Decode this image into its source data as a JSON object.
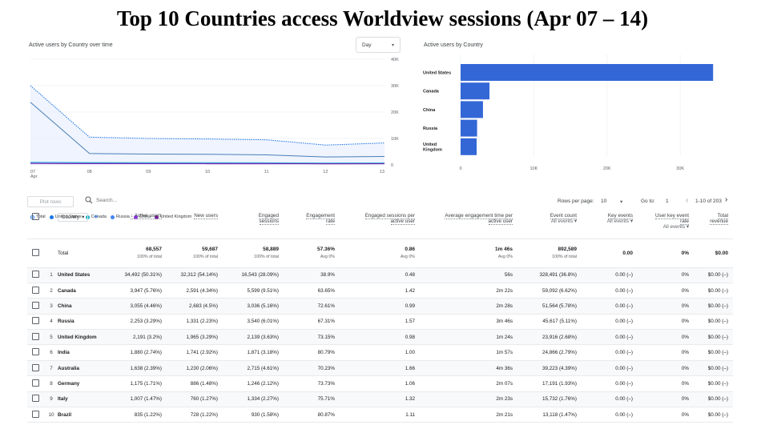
{
  "title": "Top 10 Countries access Worldview sessions (Apr 07 – 14)",
  "line_chart": {
    "title": "Active users by Country over time",
    "granularity": "Day",
    "y_ticks": [
      "40K",
      "30K",
      "20K",
      "10K",
      "0"
    ],
    "x_ticks": [
      "07",
      "08",
      "09",
      "10",
      "11",
      "12",
      "13"
    ],
    "x_sub": "Apr",
    "legend": [
      {
        "label": "Total",
        "color": "#1a73e8",
        "hollow": true
      },
      {
        "label": "United States",
        "color": "#1a73e8"
      },
      {
        "label": "Canada",
        "color": "#12b5cb"
      },
      {
        "label": "Russia",
        "color": "#4285f4"
      },
      {
        "label": "China",
        "color": "#9334e6"
      },
      {
        "label": "United Kingdom",
        "color": "#7b1fa2"
      }
    ]
  },
  "chart_data": [
    {
      "type": "line",
      "title": "Active users by Country over time",
      "x": [
        "07",
        "08",
        "09",
        "10",
        "11",
        "12",
        "13"
      ],
      "ylim": [
        0,
        40000
      ],
      "series": [
        {
          "name": "Total",
          "values": [
            30000,
            10500,
            10000,
            9800,
            9500,
            7500,
            8300
          ]
        },
        {
          "name": "United States",
          "values": [
            23700,
            4300,
            4100,
            4000,
            3800,
            3000,
            3200
          ]
        },
        {
          "name": "Canada",
          "values": [
            1000,
            900,
            850,
            850,
            800,
            700,
            750
          ]
        },
        {
          "name": "Russia",
          "values": [
            700,
            600,
            580,
            560,
            550,
            500,
            520
          ]
        },
        {
          "name": "China",
          "values": [
            600,
            550,
            520,
            500,
            490,
            450,
            470
          ]
        },
        {
          "name": "United Kingdom",
          "values": [
            500,
            450,
            430,
            420,
            410,
            380,
            390
          ]
        }
      ]
    },
    {
      "type": "bar",
      "title": "Active users by Country",
      "orientation": "horizontal",
      "categories": [
        "United States",
        "Canada",
        "China",
        "Russia",
        "United Kingdom"
      ],
      "values": [
        34492,
        3947,
        3055,
        2253,
        2191
      ],
      "x_ticks": [
        "0",
        "10K",
        "20K",
        "30K"
      ],
      "xlim": [
        0,
        36000
      ]
    }
  ],
  "bar_chart": {
    "title": "Active users by Country",
    "label_lines": [
      [
        "United States"
      ],
      [
        "Canada"
      ],
      [
        "China"
      ],
      [
        "Russia"
      ],
      [
        "United",
        "Kingdom"
      ]
    ],
    "color": "#3367d6"
  },
  "toolbar": {
    "plot_rows": "Plot rows",
    "search_placeholder": "Search...",
    "rows_per_page_label": "Rows per page:",
    "rows_per_page": "10",
    "go_to_label": "Go to:",
    "go_to": "1",
    "range": "1-10 of 203"
  },
  "table": {
    "dimension": "Country",
    "columns": [
      {
        "line1": "↓ Active users",
        "line2": ""
      },
      {
        "line1": "New users",
        "line2": ""
      },
      {
        "line1": "Engaged",
        "line2": "sessions"
      },
      {
        "line1": "Engagement",
        "line2": "rate"
      },
      {
        "line1": "Engaged sessions per",
        "line2": "active user"
      },
      {
        "line1": "Average engagement time per",
        "line2": "active user"
      },
      {
        "line1": "Event count",
        "line2": "All events"
      },
      {
        "line1": "Key events",
        "line2": "All events"
      },
      {
        "line1": "User key event",
        "line2": "rate",
        "line3": "All events"
      },
      {
        "line1": "Total",
        "line2": "revenue"
      }
    ],
    "total": {
      "label": "Total",
      "values": [
        "68,557",
        "59,687",
        "58,889",
        "57.36%",
        "0.86",
        "1m 46s",
        "892,589",
        "0.00",
        "0%",
        "$0.00"
      ],
      "subs": [
        "100% of total",
        "100% of total",
        "100% of total",
        "Avg 0%",
        "Avg 0%",
        "Avg 0%",
        "100% of total",
        "",
        "",
        ""
      ]
    },
    "rows": [
      {
        "idx": "1",
        "country": "United States",
        "active": "34,492 (50.31%)",
        "new": "32,312 (54.14%)",
        "engaged": "16,543 (28.09%)",
        "rate": "38.9%",
        "per_user": "0.48",
        "time": "56s",
        "events": "328,491 (36.8%)",
        "key": "0.00 (–)",
        "key_rate": "0%",
        "revenue": "$0.00 (–)"
      },
      {
        "idx": "2",
        "country": "Canada",
        "active": "3,947 (5.76%)",
        "new": "2,591 (4.34%)",
        "engaged": "5,599 (9.51%)",
        "rate": "63.65%",
        "per_user": "1.42",
        "time": "2m 22s",
        "events": "59,092 (6.62%)",
        "key": "0.00 (–)",
        "key_rate": "0%",
        "revenue": "$0.00 (–)"
      },
      {
        "idx": "3",
        "country": "China",
        "active": "3,055 (4.46%)",
        "new": "2,683 (4.5%)",
        "engaged": "3,036 (5.16%)",
        "rate": "72.61%",
        "per_user": "0.99",
        "time": "2m 28s",
        "events": "51,564 (5.78%)",
        "key": "0.00 (–)",
        "key_rate": "0%",
        "revenue": "$0.00 (–)"
      },
      {
        "idx": "4",
        "country": "Russia",
        "active": "2,253 (3.29%)",
        "new": "1,331 (2.23%)",
        "engaged": "3,540 (6.01%)",
        "rate": "67.31%",
        "per_user": "1.57",
        "time": "3m 46s",
        "events": "45,617 (5.11%)",
        "key": "0.00 (–)",
        "key_rate": "0%",
        "revenue": "$0.00 (–)"
      },
      {
        "idx": "5",
        "country": "United Kingdom",
        "active": "2,191 (3.2%)",
        "new": "1,965 (3.29%)",
        "engaged": "2,139 (3.63%)",
        "rate": "73.15%",
        "per_user": "0.98",
        "time": "1m 24s",
        "events": "23,916 (2.68%)",
        "key": "0.00 (–)",
        "key_rate": "0%",
        "revenue": "$0.00 (–)"
      },
      {
        "idx": "6",
        "country": "India",
        "active": "1,880 (2.74%)",
        "new": "1,741 (2.92%)",
        "engaged": "1,871 (3.18%)",
        "rate": "80.79%",
        "per_user": "1.00",
        "time": "1m 57s",
        "events": "24,866 (2.79%)",
        "key": "0.00 (–)",
        "key_rate": "0%",
        "revenue": "$0.00 (–)"
      },
      {
        "idx": "7",
        "country": "Australia",
        "active": "1,638 (2.39%)",
        "new": "1,230 (2.06%)",
        "engaged": "2,715 (4.61%)",
        "rate": "70.23%",
        "per_user": "1.66",
        "time": "4m 36s",
        "events": "39,223 (4.39%)",
        "key": "0.00 (–)",
        "key_rate": "0%",
        "revenue": "$0.00 (–)"
      },
      {
        "idx": "8",
        "country": "Germany",
        "active": "1,175 (1.71%)",
        "new": "886 (1.48%)",
        "engaged": "1,246 (2.12%)",
        "rate": "73.73%",
        "per_user": "1.06",
        "time": "2m 07s",
        "events": "17,191 (1.93%)",
        "key": "0.00 (–)",
        "key_rate": "0%",
        "revenue": "$0.00 (–)"
      },
      {
        "idx": "9",
        "country": "Italy",
        "active": "1,007 (1.47%)",
        "new": "760 (1.27%)",
        "engaged": "1,334 (2.27%)",
        "rate": "75.71%",
        "per_user": "1.32",
        "time": "2m 23s",
        "events": "15,732 (1.76%)",
        "key": "0.00 (–)",
        "key_rate": "0%",
        "revenue": "$0.00 (–)"
      },
      {
        "idx": "10",
        "country": "Brazil",
        "active": "835 (1.22%)",
        "new": "728 (1.22%)",
        "engaged": "930 (1.58%)",
        "rate": "80.87%",
        "per_user": "1.11",
        "time": "2m 21s",
        "events": "13,118 (1.47%)",
        "key": "0.00 (–)",
        "key_rate": "0%",
        "revenue": "$0.00 (–)"
      }
    ]
  },
  "icons": {
    "search": "search-icon",
    "caret": "▾",
    "prev": "‹",
    "next": "›",
    "plus": "+"
  }
}
